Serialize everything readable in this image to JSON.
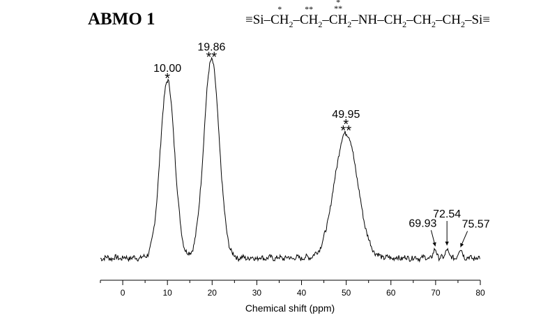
{
  "chart_data": {
    "type": "line",
    "title": "ABMO 1",
    "xlabel": "Chemical shift (ppm)",
    "ylabel": "",
    "xlim": [
      -5,
      80
    ],
    "x_ticks": [
      "0",
      "10",
      "20",
      "30",
      "40",
      "50",
      "60",
      "70",
      "80"
    ],
    "grid": false,
    "legend": "none",
    "line_color": "#000000",
    "peaks": [
      {
        "x": 10.0,
        "height": 1.0,
        "label": "10.00",
        "stars": "*"
      },
      {
        "x": 19.86,
        "height": 1.12,
        "label": "19.86",
        "stars": "**"
      },
      {
        "x": 49.95,
        "height": 0.705,
        "label": "49.95",
        "stars": "*\n**"
      },
      {
        "x": 69.93,
        "height": 0.05,
        "label": "69.93",
        "stars": ""
      },
      {
        "x": 72.54,
        "height": 0.055,
        "label": "72.54",
        "stars": ""
      },
      {
        "x": 75.57,
        "height": 0.045,
        "label": "75.57",
        "stars": ""
      }
    ]
  },
  "formula": {
    "prefix": "≡Si–",
    "c1": "CH",
    "c1_star": "*",
    "c2": "CH",
    "c2_star": "**",
    "c3": "CH",
    "c3_star": "*\n**",
    "sub": "2",
    "dash": "–",
    "rest1": "–NH–CH",
    "rest2": "–CH",
    "rest3": "–CH",
    "suffix": "–Si≡"
  }
}
